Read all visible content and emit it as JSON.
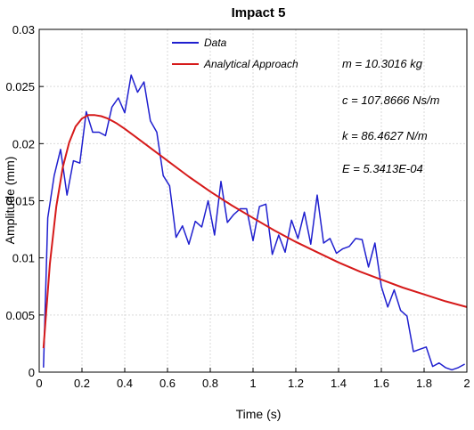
{
  "chart_data": {
    "type": "line",
    "title": "Impact 5",
    "xlabel": "Time (s)",
    "ylabel": "Amplitude (mm)",
    "xlim": [
      0,
      2
    ],
    "ylim": [
      0,
      0.03
    ],
    "x_ticks": [
      0,
      0.2,
      0.4,
      0.6,
      0.8,
      1,
      1.2,
      1.4,
      1.6,
      1.8,
      2
    ],
    "x_tick_labels": [
      "0",
      "0.2",
      "0.4",
      "0.6",
      "0.8",
      "1",
      "1.2",
      "1.4",
      "1.6",
      "1.8",
      "2"
    ],
    "y_ticks": [
      0,
      0.005,
      0.01,
      0.015,
      0.02,
      0.025,
      0.03
    ],
    "y_tick_labels": [
      "0",
      "0.005",
      "0.01",
      "0.015",
      "0.02",
      "0.025",
      "0.03"
    ],
    "grid": true,
    "legend_position": "top-center",
    "series": [
      {
        "name": "Data",
        "color": "#1f1fcf",
        "x": [
          0.02,
          0.04,
          0.07,
          0.1,
          0.13,
          0.16,
          0.19,
          0.22,
          0.25,
          0.28,
          0.31,
          0.34,
          0.37,
          0.4,
          0.43,
          0.46,
          0.49,
          0.52,
          0.55,
          0.58,
          0.61,
          0.64,
          0.67,
          0.7,
          0.73,
          0.76,
          0.79,
          0.82,
          0.85,
          0.88,
          0.91,
          0.94,
          0.97,
          1.0,
          1.03,
          1.06,
          1.09,
          1.12,
          1.15,
          1.18,
          1.21,
          1.24,
          1.27,
          1.3,
          1.33,
          1.36,
          1.39,
          1.42,
          1.45,
          1.48,
          1.51,
          1.54,
          1.57,
          1.6,
          1.63,
          1.66,
          1.69,
          1.72,
          1.75,
          1.78,
          1.81,
          1.84,
          1.87,
          1.9,
          1.93,
          1.96,
          1.99
        ],
        "y": [
          0.0004,
          0.0135,
          0.0172,
          0.0195,
          0.0155,
          0.0185,
          0.0183,
          0.0228,
          0.021,
          0.021,
          0.0207,
          0.0232,
          0.024,
          0.0227,
          0.026,
          0.0245,
          0.0254,
          0.022,
          0.021,
          0.0172,
          0.0163,
          0.0118,
          0.0128,
          0.0112,
          0.0132,
          0.0127,
          0.015,
          0.012,
          0.0167,
          0.0131,
          0.0138,
          0.0143,
          0.0143,
          0.0115,
          0.0145,
          0.0147,
          0.0103,
          0.012,
          0.0105,
          0.0133,
          0.0117,
          0.014,
          0.0112,
          0.0155,
          0.0113,
          0.0117,
          0.0104,
          0.0108,
          0.011,
          0.0117,
          0.0116,
          0.0092,
          0.0113,
          0.0075,
          0.0057,
          0.0072,
          0.0054,
          0.0049,
          0.0018,
          0.002,
          0.0022,
          0.0005,
          0.0008,
          0.0004,
          0.0002,
          0.0004,
          0.0007
        ]
      },
      {
        "name": "Analytical Approach",
        "color": "#d61a1a",
        "x": [
          0.02,
          0.05,
          0.08,
          0.11,
          0.14,
          0.17,
          0.2,
          0.23,
          0.26,
          0.29,
          0.32,
          0.36,
          0.4,
          0.45,
          0.5,
          0.55,
          0.6,
          0.7,
          0.8,
          0.9,
          1.0,
          1.1,
          1.2,
          1.3,
          1.4,
          1.5,
          1.6,
          1.7,
          1.8,
          1.9,
          2.0
        ],
        "y": [
          0.0021,
          0.0095,
          0.0145,
          0.0179,
          0.0201,
          0.0215,
          0.0222,
          0.0225,
          0.0225,
          0.0224,
          0.0222,
          0.0218,
          0.0213,
          0.0206,
          0.0199,
          0.0192,
          0.0185,
          0.0171,
          0.0158,
          0.0146,
          0.0135,
          0.0124,
          0.0114,
          0.0105,
          0.0096,
          0.0088,
          0.0081,
          0.0074,
          0.0068,
          0.0062,
          0.0057
        ]
      }
    ],
    "annotations": [
      "m = 10.3016 kg",
      "c = 107.8666 Ns/m",
      "k = 86.4627 N/m",
      "E = 5.3413E-04"
    ]
  }
}
